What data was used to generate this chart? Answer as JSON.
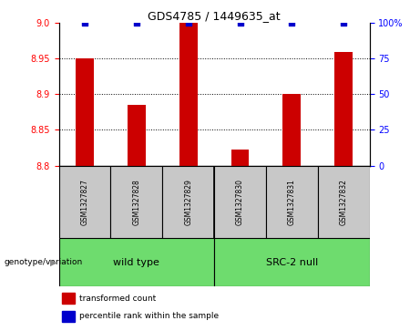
{
  "title": "GDS4785 / 1449635_at",
  "samples": [
    "GSM1327827",
    "GSM1327828",
    "GSM1327829",
    "GSM1327830",
    "GSM1327831",
    "GSM1327832"
  ],
  "red_values": [
    8.95,
    8.885,
    9.0,
    8.823,
    8.9,
    8.96
  ],
  "blue_values": [
    100,
    100,
    100,
    100,
    100,
    100
  ],
  "ylim_left": [
    8.8,
    9.0
  ],
  "ylim_right": [
    0,
    100
  ],
  "yticks_left": [
    8.8,
    8.85,
    8.9,
    8.95,
    9.0
  ],
  "yticks_right": [
    0,
    25,
    50,
    75,
    100
  ],
  "bar_color": "#cc0000",
  "dot_color": "#0000cc",
  "bar_width": 0.35,
  "sample_bg": "#c8c8c8",
  "group_bg": "#6edc6e",
  "legend_red_label": "transformed count",
  "legend_blue_label": "percentile rank within the sample",
  "genotype_label": "genotype/variation",
  "wild_type_label": "wild type",
  "src2_label": "SRC-2 null",
  "dotted_lines": [
    8.85,
    8.9,
    8.95
  ],
  "group_separator": 2.5
}
